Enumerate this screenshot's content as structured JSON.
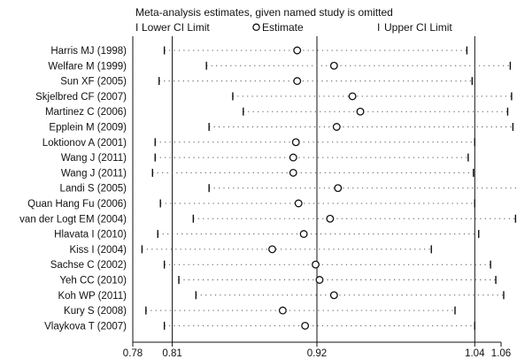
{
  "chart_data": {
    "type": "scatter",
    "title": "Meta-analysis estimates, given named study is omitted",
    "legend": {
      "placement": "top",
      "items": [
        {
          "symbol": "I",
          "label": "Lower CI Limit"
        },
        {
          "symbol": "O",
          "label": "Estimate"
        },
        {
          "symbol": "I",
          "label": "Upper CI Limit"
        }
      ]
    },
    "x_ticks": [
      {
        "value": 0.78,
        "label": "0.78"
      },
      {
        "value": 0.81,
        "label": "0.81"
      },
      {
        "value": 0.92,
        "label": "0.92"
      },
      {
        "value": 1.04,
        "label": "1.04"
      },
      {
        "value": 1.06,
        "label": "1.06"
      }
    ],
    "xlim": [
      0.78,
      1.06
    ],
    "reference_lines": {
      "lower": 0.81,
      "estimate": 0.92,
      "upper": 1.04
    },
    "studies": [
      {
        "name": "Harris MJ (1998)",
        "lower": 0.804,
        "estimate": 0.905,
        "upper": 1.034
      },
      {
        "name": "Welfare M (1999)",
        "lower": 0.836,
        "estimate": 0.933,
        "upper": 1.067
      },
      {
        "name": "Sun XF (2005)",
        "lower": 0.8,
        "estimate": 0.905,
        "upper": 1.038
      },
      {
        "name": "Skjelbred CF (2007)",
        "lower": 0.856,
        "estimate": 0.947,
        "upper": 1.068
      },
      {
        "name": "Martinez C (2006)",
        "lower": 0.864,
        "estimate": 0.953,
        "upper": 1.065
      },
      {
        "name": "Epplein M (2009)",
        "lower": 0.838,
        "estimate": 0.935,
        "upper": 1.069
      },
      {
        "name": "Loktionov A (2001)",
        "lower": 0.797,
        "estimate": 0.904,
        "upper": 1.04
      },
      {
        "name": "Wang J (2011)",
        "lower": 0.797,
        "estimate": 0.902,
        "upper": 1.035
      },
      {
        "name": "Wang J (2011)",
        "lower": 0.795,
        "estimate": 0.902,
        "upper": 1.039
      },
      {
        "name": "Landi S (2005)",
        "lower": 0.838,
        "estimate": 0.936,
        "upper": 1.075
      },
      {
        "name": "Quan Hang Fu (2006)",
        "lower": 0.801,
        "estimate": 0.906,
        "upper": 1.04
      },
      {
        "name": "van der Logt EM (2004)",
        "lower": 0.826,
        "estimate": 0.93,
        "upper": 1.071
      },
      {
        "name": "Hlavata I (2010)",
        "lower": 0.799,
        "estimate": 0.91,
        "upper": 1.043
      },
      {
        "name": "Kiss I (2004)",
        "lower": 0.787,
        "estimate": 0.886,
        "upper": 1.007
      },
      {
        "name": "Sachse C (2002)",
        "lower": 0.804,
        "estimate": 0.919,
        "upper": 1.052
      },
      {
        "name": "Yeh CC (2010)",
        "lower": 0.815,
        "estimate": 0.922,
        "upper": 1.056
      },
      {
        "name": "Koh WP (2011)",
        "lower": 0.828,
        "estimate": 0.933,
        "upper": 1.062
      },
      {
        "name": "Kury S (2008)",
        "lower": 0.79,
        "estimate": 0.894,
        "upper": 1.025
      },
      {
        "name": "Vlaykova T (2007)",
        "lower": 0.804,
        "estimate": 0.911,
        "upper": 1.04
      }
    ]
  }
}
